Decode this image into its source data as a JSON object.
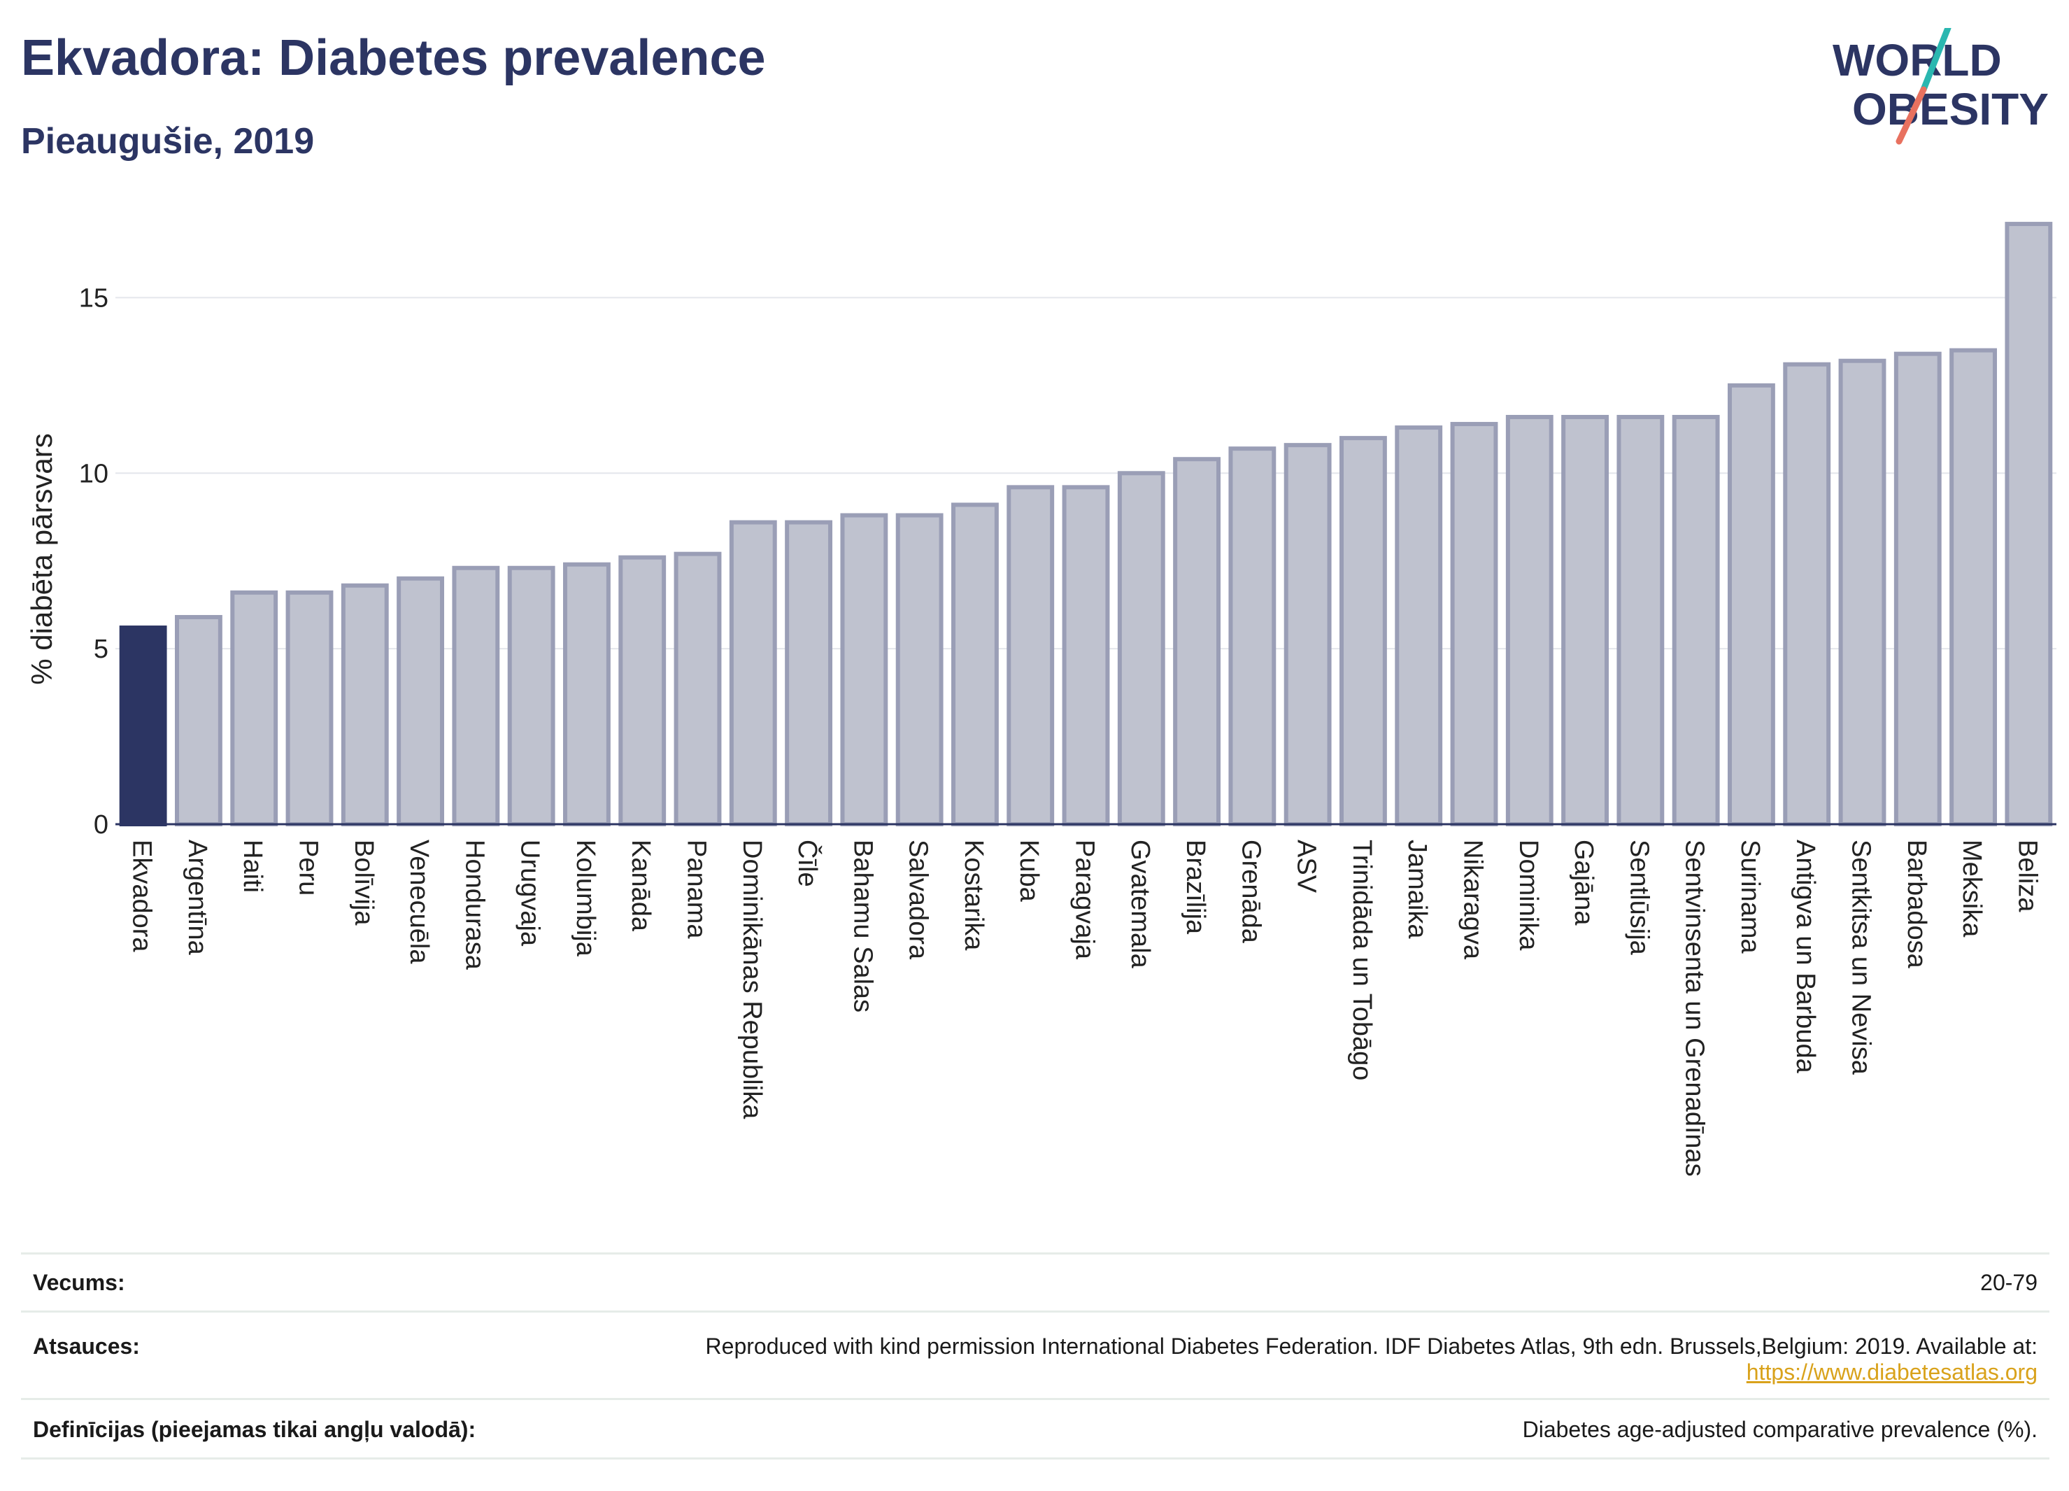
{
  "title": "Ekvadora: Diabetes prevalence",
  "subtitle": "Pieaugušie, 2019",
  "logo": {
    "line1": "WORLD",
    "line2": "OBESITY"
  },
  "colors": {
    "highlight": "#2c3563",
    "bar_fill": "#bfc2cf",
    "bar_stroke": "#9a9eb6",
    "title": "#2c3563",
    "link": "#d9a21b",
    "logo_teal": "#2ab7b0",
    "logo_coral": "#e8715f"
  },
  "chart_data": {
    "type": "bar",
    "ylabel": "% diabēta pārsvars",
    "ylim": [
      0,
      17.5
    ],
    "yticks": [
      0,
      5,
      10,
      15
    ],
    "grid": true,
    "highlight": "Ekvadora",
    "categories": [
      "Ekvadora",
      "Argentīna",
      "Haiti",
      "Peru",
      "Bolīvija",
      "Venecuēla",
      "Hondurasa",
      "Urugvaja",
      "Kolumbija",
      "Kanāda",
      "Panama",
      "Dominikānas Republika",
      "Čīle",
      "Bahamu Salas",
      "Salvadora",
      "Kostarika",
      "Kuba",
      "Paragvaja",
      "Gvatemala",
      "Brazīlija",
      "Grenāda",
      "ASV",
      "Trinidāda un Tobāgo",
      "Jamaika",
      "Nikaragva",
      "Dominika",
      "Gajāna",
      "Sentlūsija",
      "Sentvinsenta un Grenadīnas",
      "Surinama",
      "Antigva un Barbuda",
      "Sentkitsa un Nevisa",
      "Barbadosa",
      "Meksika",
      "Beliza"
    ],
    "values": [
      5.6,
      5.9,
      6.6,
      6.6,
      6.8,
      7.0,
      7.3,
      7.3,
      7.4,
      7.6,
      7.7,
      8.6,
      8.6,
      8.8,
      8.8,
      9.1,
      9.6,
      9.6,
      10.0,
      10.4,
      10.7,
      10.8,
      11.0,
      11.3,
      11.4,
      11.6,
      11.6,
      11.6,
      11.6,
      12.5,
      13.1,
      13.2,
      13.4,
      13.5,
      17.1
    ]
  },
  "footer": {
    "age_label": "Vecums:",
    "age_value": "20-79",
    "source_label": "Atsauces:",
    "source_text": "Reproduced with kind permission International Diabetes Federation. IDF Diabetes Atlas, 9th edn. Brussels,Belgium: 2019. Available at:",
    "source_link": "https://www.diabetesatlas.org",
    "def_label": "Definīcijas (pieejamas tikai angļu valodā):",
    "def_value": "Diabetes age-adjusted comparative prevalence (%)."
  }
}
